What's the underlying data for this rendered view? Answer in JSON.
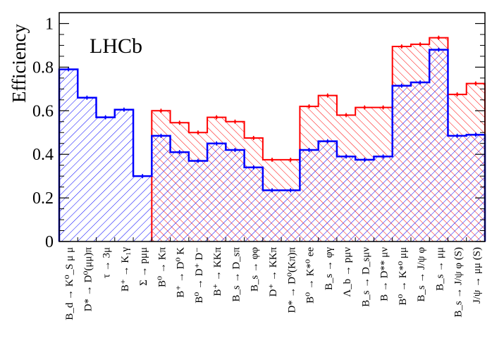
{
  "chart_data": {
    "type": "bar",
    "title": "",
    "watermark": "LHCb",
    "xlabel": "",
    "ylabel": "Efficiency",
    "ylim": [
      0,
      1.05
    ],
    "yticks": [
      "0",
      "0.2",
      "0.4",
      "0.6",
      "0.8",
      "1"
    ],
    "grid": false,
    "legend": "none",
    "categories": [
      "B_d → K⁰_S μ μ",
      "D* → D⁰(μμ)π",
      "τ → 3μ",
      "B⁺ → K₁γ",
      "Σ → pμμ",
      "B⁰ → Kπ",
      "B⁺ → D⁰ K",
      "B⁰ → D⁺ D⁻",
      "B⁺ → KKπ",
      "B_s → D_sπ",
      "B_s → φφ",
      "D⁺ → KKπ",
      "D* → D⁰(Kπ)π",
      "B⁰ → K*⁰ ee",
      "B_s → φγ",
      "Λ_b → pμν",
      "B_s → D_sμν",
      "B → D** μν",
      "B⁰ → K*⁰ μμ",
      "B_s → J/ψ φ",
      "B_s → μμ",
      "B_s → J/ψ φ (S)",
      "J/ψ → μμ (S)"
    ],
    "series": [
      {
        "color": "#0000ff",
        "hatch": "single-diagonal",
        "values": [
          0.79,
          0.66,
          0.57,
          0.605,
          0.3,
          0.485,
          0.41,
          0.37,
          0.45,
          0.42,
          0.34,
          0.235,
          0.235,
          0.42,
          0.46,
          0.39,
          0.375,
          0.39,
          0.715,
          0.73,
          0.88,
          0.485,
          0.49
        ]
      },
      {
        "color": "#ff0000",
        "hatch": "single-diagonal",
        "start_index": 5,
        "values": [
          null,
          null,
          null,
          null,
          null,
          0.6,
          0.545,
          0.5,
          0.57,
          0.55,
          0.475,
          0.375,
          0.375,
          0.62,
          0.67,
          0.58,
          0.615,
          0.615,
          0.895,
          0.905,
          0.935,
          0.675,
          0.725
        ]
      }
    ]
  }
}
